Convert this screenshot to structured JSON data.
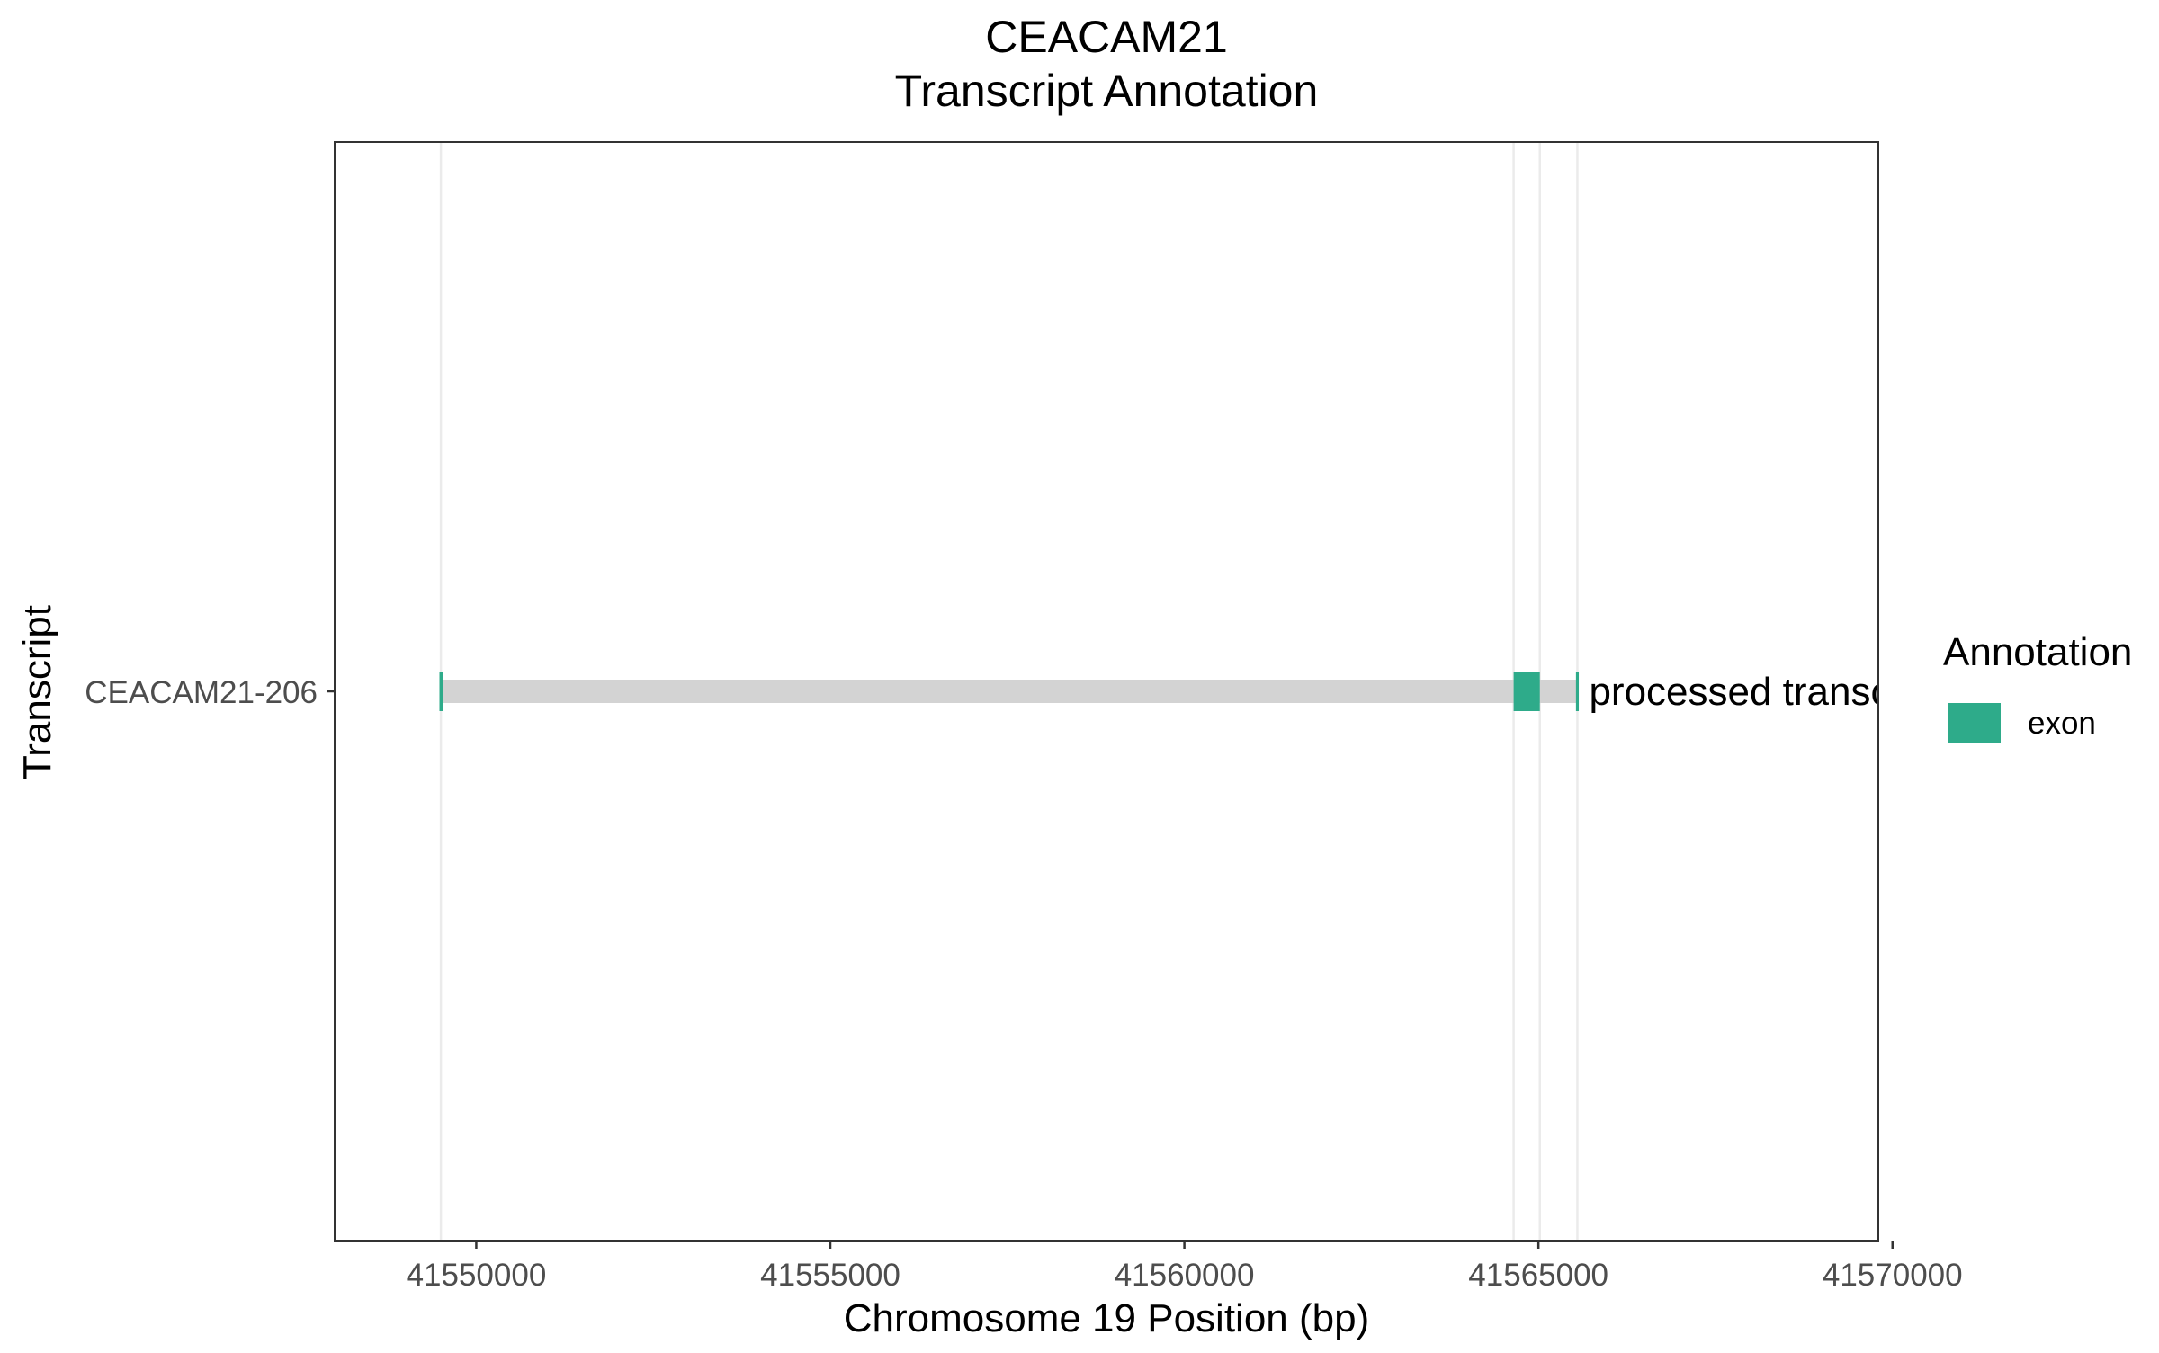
{
  "chart_data": {
    "type": "gantt",
    "title_line1": "CEACAM21",
    "title_line2": "Transcript Annotation",
    "xlabel": "Chromosome 19 Position (bp)",
    "ylabel": "Transcript",
    "xlim": [
      41548000,
      41569800
    ],
    "x_ticks": [
      41550000,
      41555000,
      41560000,
      41565000,
      41570000
    ],
    "x_tick_labels": [
      "41550000",
      "41555000",
      "41560000",
      "41565000",
      "41570000"
    ],
    "gridlines_x": [
      41549500,
      41564650,
      41565020,
      41565550
    ],
    "transcripts": [
      {
        "name": "CEACAM21-206",
        "start": 41549500,
        "end": 41565550,
        "biotype_label": "processed transcript",
        "exons": [
          {
            "start": 41549480,
            "end": 41549530
          },
          {
            "start": 41564650,
            "end": 41565020
          },
          {
            "start": 41565530,
            "end": 41565570
          }
        ]
      }
    ],
    "legend": {
      "title": "Annotation",
      "position": "right",
      "items": [
        {
          "label": "exon",
          "color": "#2eab8a"
        }
      ]
    },
    "colors": {
      "exon": "#2eab8a",
      "intron_bar": "#d3d3d3",
      "gridline": "#ebebeb",
      "panel_border": "#333333"
    }
  }
}
